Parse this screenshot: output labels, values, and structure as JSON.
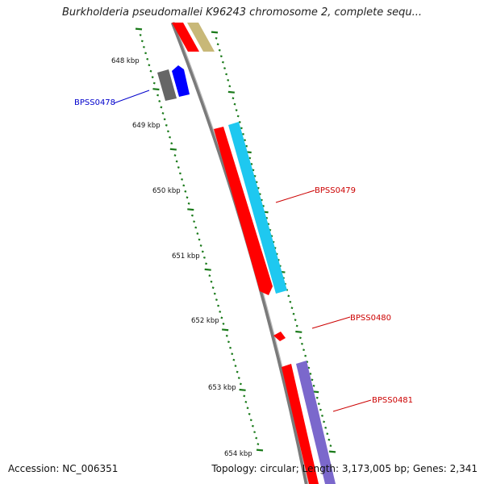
{
  "title": "Burkholderia pseudomallei K96243 chromosome 2, complete sequ...",
  "ticks": [
    {
      "label": "648 kbp"
    },
    {
      "label": "649 kbp"
    },
    {
      "label": "650 kbp"
    },
    {
      "label": "651 kbp"
    },
    {
      "label": "652 kbp"
    },
    {
      "label": "653 kbp"
    },
    {
      "label": "654 kbp"
    }
  ],
  "genes": [
    {
      "name": "BPSS0478",
      "color": "#0000cc"
    },
    {
      "name": "BPSS0479",
      "color": "#cc0000"
    },
    {
      "name": "BPSS0480",
      "color": "#cc0000"
    },
    {
      "name": "BPSS0481",
      "color": "#cc0000"
    }
  ],
  "colors": {
    "cds": "#ff0000",
    "gene_blue": "#0000ff",
    "gene_grey": "#666666",
    "cyan_feature": "#1ec8f0",
    "purple_feature": "#7b68cc",
    "tan_feature": "#c8b878",
    "backbone": "#808080",
    "tick_green": "#1a7a1a"
  },
  "footer": {
    "accession": "Accession: NC_006351",
    "summary": "Topology: circular; Length: 3,173,005 bp; Genes: 2,341"
  }
}
